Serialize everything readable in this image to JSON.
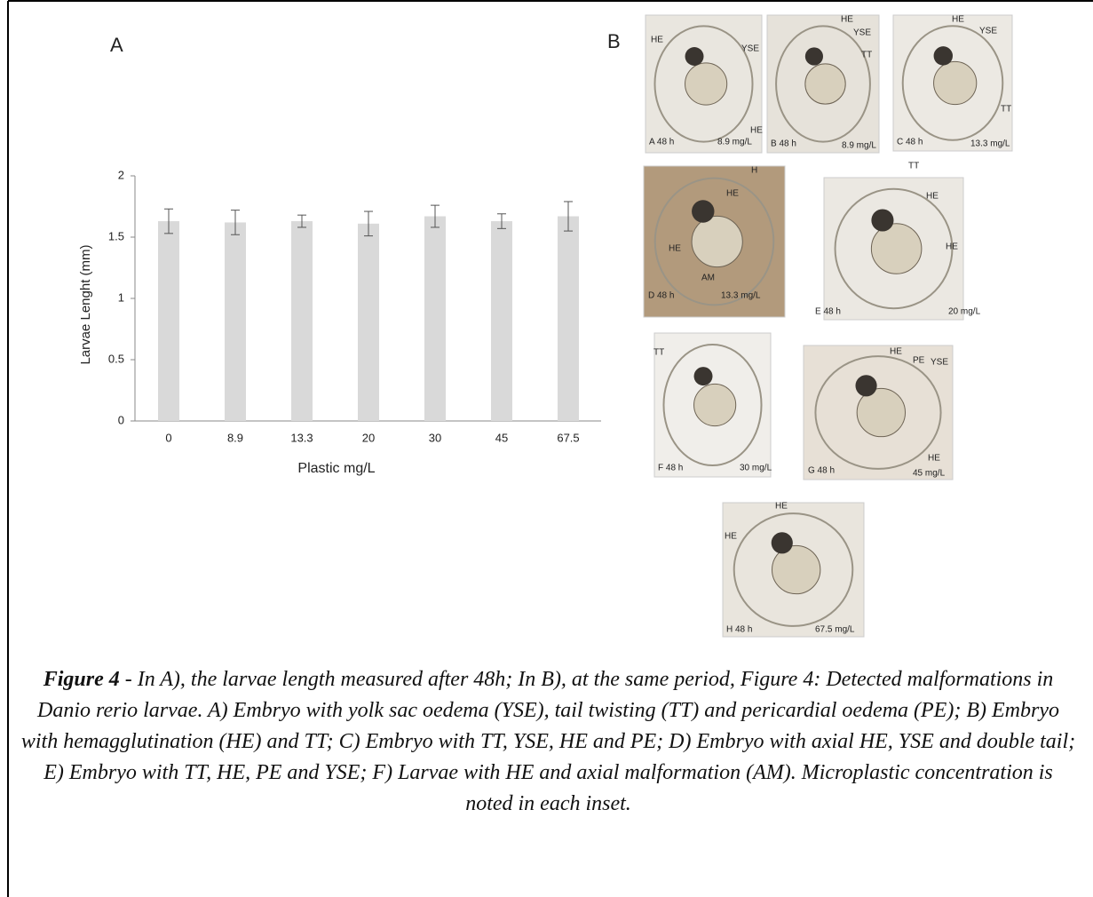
{
  "chart_data": {
    "type": "bar",
    "panel_label": "A",
    "y_label": "Larvae Lenght (mm)",
    "x_label": "Plastic mg/L",
    "categories": [
      "0",
      "8.9",
      "13.3",
      "20",
      "30",
      "45",
      "67.5"
    ],
    "values": [
      1.63,
      1.62,
      1.63,
      1.61,
      1.67,
      1.63,
      1.67
    ],
    "errors": [
      0.1,
      0.1,
      0.05,
      0.1,
      0.09,
      0.06,
      0.12
    ],
    "color": "#d9d9d9",
    "ylim": [
      0,
      2
    ],
    "yticks": [
      0,
      0.5,
      1,
      1.5,
      2
    ]
  },
  "panel_b_label": "B",
  "insets": [
    {
      "labels": [
        "HE",
        "YSE",
        "HE"
      ],
      "time": "A 48 h",
      "concentration": "8.9 mg/L"
    },
    {
      "labels": [
        "HE",
        "YSE",
        "TT"
      ],
      "time": "B 48 h",
      "concentration": "8.9 mg/L"
    },
    {
      "labels": [
        "HE",
        "YSE",
        "TT"
      ],
      "time": "C 48 h",
      "concentration": "13.3 mg/L"
    },
    {
      "labels": [
        "H",
        "HE",
        "HE",
        "AM"
      ],
      "time": "D 48 h",
      "concentration": "13.3 mg/L"
    },
    {
      "labels": [
        "TT",
        "HE",
        "HE"
      ],
      "time": "E 48 h",
      "concentration": "20 mg/L"
    },
    {
      "labels": [
        "TT"
      ],
      "time": "F 48 h",
      "concentration": "30 mg/L"
    },
    {
      "labels": [
        "HE",
        "PE",
        "YSE",
        "HE"
      ],
      "time": "G 48 h",
      "concentration": "45 mg/L"
    },
    {
      "labels": [
        "HE",
        "HE"
      ],
      "time": "H 48 h",
      "concentration": "67.5 mg/L"
    }
  ],
  "caption": {
    "label": "Figure 4",
    "text": " - In A), the larvae length measured after 48h; In B), at the same period, Figure 4: Detected malformations in Danio rerio larvae. A) Embryo with yolk sac oedema (YSE), tail twisting (TT) and pericardial oedema (PE); B) Embryo with hemagglutination (HE) and TT; C) Embryo with TT, YSE, HE and PE; D) Embryo with axial HE, YSE and double tail; E) Embryo with TT, HE, PE and YSE; F) Larvae with HE and axial malformation (AM). Microplastic concentration is noted in each inset."
  }
}
